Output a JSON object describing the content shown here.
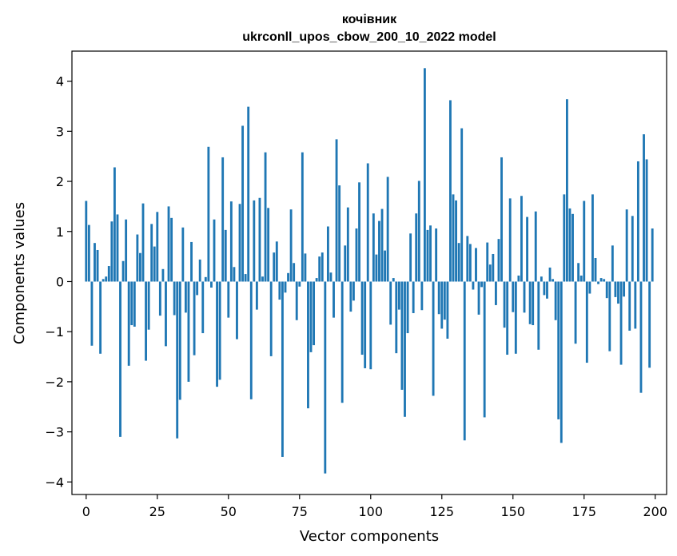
{
  "chart_data": {
    "type": "bar",
    "title": "кочівник",
    "subtitle": "ukrconll_upos_cbow_200_10_2022 model",
    "xlabel": "Vector components",
    "ylabel": "Components values",
    "xlim": [
      -5,
      204
    ],
    "ylim": [
      -4.25,
      4.6
    ],
    "xticks": [
      0,
      25,
      50,
      75,
      100,
      125,
      150,
      175,
      200
    ],
    "yticks": [
      -4,
      -3,
      -2,
      -1,
      0,
      1,
      2,
      3,
      4
    ],
    "grid": false,
    "legend": "none",
    "color": "#1f77b4",
    "x": [
      0,
      1,
      2,
      3,
      4,
      5,
      6,
      7,
      8,
      9,
      10,
      11,
      12,
      13,
      14,
      15,
      16,
      17,
      18,
      19,
      20,
      21,
      22,
      23,
      24,
      25,
      26,
      27,
      28,
      29,
      30,
      31,
      32,
      33,
      34,
      35,
      36,
      37,
      38,
      39,
      40,
      41,
      42,
      43,
      44,
      45,
      46,
      47,
      48,
      49,
      50,
      51,
      52,
      53,
      54,
      55,
      56,
      57,
      58,
      59,
      60,
      61,
      62,
      63,
      64,
      65,
      66,
      67,
      68,
      69,
      70,
      71,
      72,
      73,
      74,
      75,
      76,
      77,
      78,
      79,
      80,
      81,
      82,
      83,
      84,
      85,
      86,
      87,
      88,
      89,
      90,
      91,
      92,
      93,
      94,
      95,
      96,
      97,
      98,
      99,
      100,
      101,
      102,
      103,
      104,
      105,
      106,
      107,
      108,
      109,
      110,
      111,
      112,
      113,
      114,
      115,
      116,
      117,
      118,
      119,
      120,
      121,
      122,
      123,
      124,
      125,
      126,
      127,
      128,
      129,
      130,
      131,
      132,
      133,
      134,
      135,
      136,
      137,
      138,
      139,
      140,
      141,
      142,
      143,
      144,
      145,
      146,
      147,
      148,
      149,
      150,
      151,
      152,
      153,
      154,
      155,
      156,
      157,
      158,
      159,
      160,
      161,
      162,
      163,
      164,
      165,
      166,
      167,
      168,
      169,
      170,
      171,
      172,
      173,
      174,
      175,
      176,
      177,
      178,
      179,
      180,
      181,
      182,
      183,
      184,
      185,
      186,
      187,
      188,
      189,
      190,
      191,
      192,
      193,
      194,
      195,
      196,
      197,
      198,
      199
    ],
    "values": [
      1.61,
      1.13,
      -1.28,
      0.77,
      0.63,
      -1.44,
      0.05,
      0.1,
      0.31,
      1.2,
      2.28,
      1.34,
      -3.1,
      0.41,
      1.24,
      -1.68,
      -0.87,
      -0.9,
      0.94,
      0.57,
      1.56,
      -1.58,
      -0.96,
      1.15,
      0.7,
      1.39,
      -0.68,
      0.25,
      -1.29,
      1.5,
      1.27,
      -0.67,
      -3.13,
      -2.36,
      1.08,
      -0.62,
      -2.0,
      0.79,
      -1.47,
      -0.27,
      0.44,
      -1.03,
      0.09,
      2.69,
      -0.12,
      1.24,
      -2.1,
      -1.96,
      2.48,
      1.03,
      -0.72,
      1.6,
      0.29,
      -1.15,
      1.55,
      3.11,
      0.15,
      3.49,
      -2.35,
      1.62,
      -0.56,
      1.67,
      0.1,
      2.58,
      1.47,
      -1.49,
      0.58,
      0.8,
      -0.36,
      -3.5,
      -0.22,
      0.17,
      1.44,
      0.37,
      -0.77,
      -0.1,
      2.58,
      0.56,
      -2.53,
      -1.41,
      -1.27,
      0.07,
      0.5,
      0.58,
      -3.83,
      1.1,
      0.18,
      -0.72,
      2.84,
      1.92,
      -2.42,
      0.72,
      1.48,
      -0.6,
      -0.38,
      1.06,
      1.98,
      -1.46,
      -1.73,
      2.36,
      -1.75,
      1.36,
      0.54,
      1.21,
      1.45,
      0.62,
      2.09,
      -0.86,
      0.07,
      -1.43,
      -0.56,
      -2.16,
      -2.7,
      -1.03,
      0.96,
      -0.63,
      1.36,
      2.01,
      -0.57,
      4.26,
      1.03,
      1.12,
      -2.28,
      1.06,
      -0.65,
      -0.94,
      -0.76,
      -1.14,
      3.62,
      1.74,
      1.62,
      0.77,
      3.06,
      -3.17,
      0.91,
      0.75,
      -0.16,
      0.67,
      -0.66,
      -0.11,
      -2.71,
      0.78,
      0.34,
      0.55,
      -0.47,
      0.85,
      2.48,
      -0.92,
      -1.46,
      1.66,
      -0.61,
      -1.44,
      0.12,
      1.71,
      -0.62,
      1.29,
      -0.85,
      -0.87,
      1.4,
      -1.36,
      0.1,
      -0.27,
      -0.34,
      0.28,
      0.05,
      -0.77,
      -2.75,
      -3.22,
      1.74,
      3.64,
      1.46,
      1.35,
      -1.24,
      0.37,
      0.12,
      1.61,
      -1.62,
      -0.24,
      1.74,
      0.47,
      -0.05,
      0.07,
      0.05,
      -0.33,
      -1.39,
      0.72,
      -0.31,
      -0.44,
      -1.66,
      -0.3,
      1.44,
      -0.98,
      1.31,
      -0.94,
      2.4,
      -2.22,
      2.94,
      2.44,
      -1.72,
      1.06
    ]
  }
}
